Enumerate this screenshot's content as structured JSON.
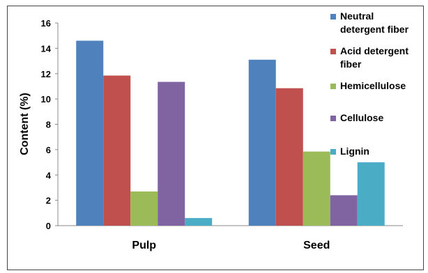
{
  "caption": "",
  "chart_data": {
    "type": "bar",
    "title": "",
    "xlabel": "",
    "ylabel": "Content (%)",
    "ylim": [
      0,
      16
    ],
    "yticks": [
      0,
      2,
      4,
      6,
      8,
      10,
      12,
      14,
      16
    ],
    "categories": [
      "Pulp",
      "Seed"
    ],
    "series": [
      {
        "name": "Neutral detergent fiber",
        "color": "#4F81BD",
        "values": [
          14.6,
          13.1
        ]
      },
      {
        "name": "Acid detergent fiber",
        "color": "#C0504D",
        "values": [
          11.85,
          10.85
        ]
      },
      {
        "name": "Hemicellulose",
        "color": "#9BBB59",
        "values": [
          2.7,
          5.85
        ]
      },
      {
        "name": "Cellulose",
        "color": "#8064A2",
        "values": [
          11.35,
          2.4
        ]
      },
      {
        "name": "Lignin",
        "color": "#4BACC6",
        "values": [
          0.6,
          5.0
        ]
      }
    ],
    "legend_position": "right",
    "grid": false
  }
}
